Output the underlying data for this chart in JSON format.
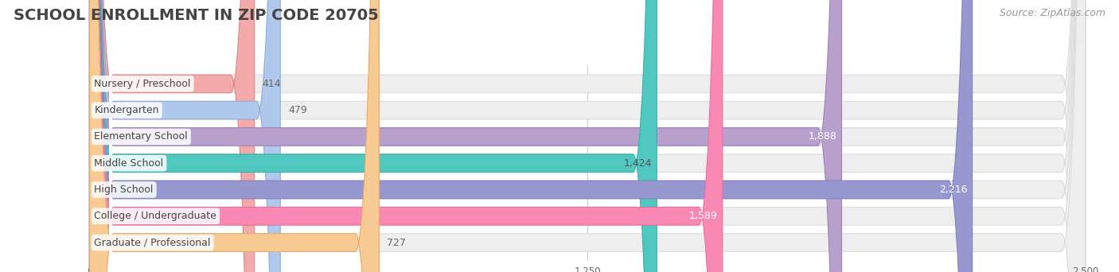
{
  "title": "SCHOOL ENROLLMENT IN ZIP CODE 20705",
  "source": "Source: ZipAtlas.com",
  "categories": [
    "Nursery / Preschool",
    "Kindergarten",
    "Elementary School",
    "Middle School",
    "High School",
    "College / Undergraduate",
    "Graduate / Professional"
  ],
  "values": [
    414,
    479,
    1888,
    1424,
    2216,
    1589,
    727
  ],
  "bar_colors": [
    "#f2aaaa",
    "#b0c8ec",
    "#b8a0cc",
    "#50c8c0",
    "#9898d0",
    "#f888b4",
    "#f8ca94"
  ],
  "bar_edge_colors": [
    "#e08888",
    "#90acd8",
    "#9c84b8",
    "#38b0a8",
    "#8080c0",
    "#e870a0",
    "#e8aa68"
  ],
  "value_label_colors_inside": [
    "#555555",
    "#555555",
    "#ffffff",
    "#555555",
    "#ffffff",
    "#ffffff",
    "#555555"
  ],
  "xlim_max": 2500,
  "xticks": [
    0,
    1250,
    2500
  ],
  "background_color": "#ffffff",
  "bar_bg_color": "#eeeeee",
  "bar_bg_edge_color": "#dddddd",
  "title_fontsize": 14,
  "source_fontsize": 9,
  "label_fontsize": 9,
  "value_fontsize": 9,
  "bar_height": 0.68,
  "bar_gap": 0.32
}
